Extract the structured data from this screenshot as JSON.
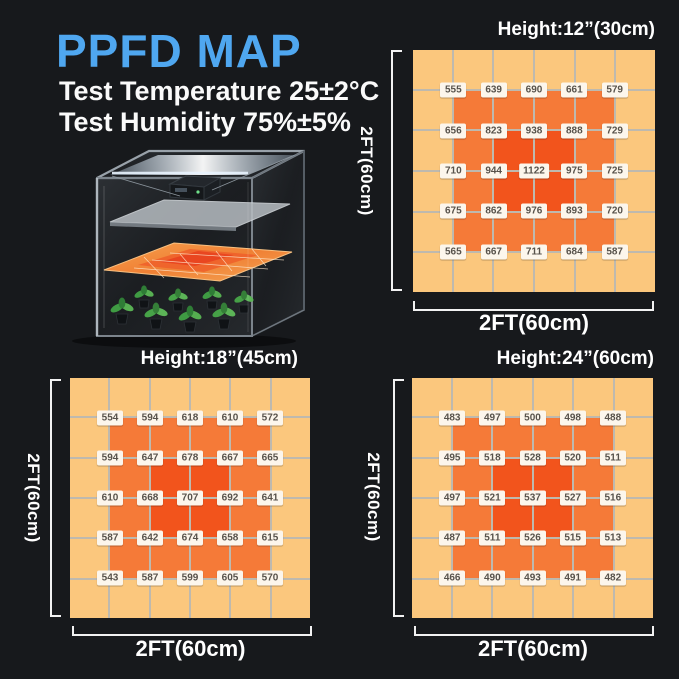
{
  "header": {
    "title": "PPFD MAP",
    "line1": "Test Temperature 25±2°C",
    "line2": "Test Humidity 75%±5%"
  },
  "colors": {
    "accent_blue": "#4FA7F0",
    "background": "#17191C",
    "cell_light": "#FBC77D",
    "cell_medium": "#F57A38",
    "cell_deep": "#F2541C",
    "chip_bg": "#FCF6EC",
    "chip_text": "#57524B",
    "bracket_white": "#F2F2F2"
  },
  "maps": [
    {
      "height_label": "Height:12”(30cm)",
      "x_label": "2FT(60cm)",
      "y_label": "2FT(60cm)",
      "values": [
        [
          555,
          639,
          690,
          661,
          579
        ],
        [
          656,
          823,
          938,
          888,
          729
        ],
        [
          710,
          944,
          1122,
          975,
          725
        ],
        [
          675,
          862,
          976,
          893,
          720
        ],
        [
          565,
          667,
          711,
          684,
          587
        ]
      ]
    },
    {
      "height_label": "Height:18”(45cm)",
      "x_label": "2FT(60cm)",
      "y_label": "2FT(60cm)",
      "values": [
        [
          554,
          594,
          618,
          610,
          572
        ],
        [
          594,
          647,
          678,
          667,
          665
        ],
        [
          610,
          668,
          707,
          692,
          641
        ],
        [
          587,
          642,
          674,
          658,
          615
        ],
        [
          543,
          587,
          599,
          605,
          570
        ]
      ]
    },
    {
      "height_label": "Height:24”(60cm)",
      "x_label": "2FT(60cm)",
      "y_label": "2FT(60cm)",
      "values": [
        [
          483,
          497,
          500,
          498,
          488
        ],
        [
          495,
          518,
          528,
          520,
          511
        ],
        [
          497,
          521,
          537,
          527,
          516
        ],
        [
          487,
          511,
          526,
          515,
          513
        ],
        [
          466,
          490,
          493,
          491,
          482
        ]
      ]
    }
  ],
  "chart_data": [
    {
      "type": "heatmap",
      "title": "Height:12”(30cm)",
      "xlabel": "2FT(60cm)",
      "ylabel": "2FT(60cm)",
      "grid": "on",
      "values": [
        [
          555,
          639,
          690,
          661,
          579
        ],
        [
          656,
          823,
          938,
          888,
          729
        ],
        [
          710,
          944,
          1122,
          975,
          725
        ],
        [
          675,
          862,
          976,
          893,
          720
        ],
        [
          565,
          667,
          711,
          684,
          587
        ]
      ],
      "color_scale": [
        "#FBC77D",
        "#F57A38",
        "#F2541C"
      ]
    },
    {
      "type": "heatmap",
      "title": "Height:18”(45cm)",
      "xlabel": "2FT(60cm)",
      "ylabel": "2FT(60cm)",
      "grid": "on",
      "values": [
        [
          554,
          594,
          618,
          610,
          572
        ],
        [
          594,
          647,
          678,
          667,
          665
        ],
        [
          610,
          668,
          707,
          692,
          641
        ],
        [
          587,
          642,
          674,
          658,
          615
        ],
        [
          543,
          587,
          599,
          605,
          570
        ]
      ],
      "color_scale": [
        "#FBC77D",
        "#F57A38",
        "#F2541C"
      ]
    },
    {
      "type": "heatmap",
      "title": "Height:24”(60cm)",
      "xlabel": "2FT(60cm)",
      "ylabel": "2FT(60cm)",
      "grid": "on",
      "values": [
        [
          483,
          497,
          500,
          498,
          488
        ],
        [
          495,
          518,
          528,
          520,
          511
        ],
        [
          497,
          521,
          537,
          527,
          516
        ],
        [
          487,
          511,
          526,
          515,
          513
        ],
        [
          466,
          490,
          493,
          491,
          482
        ]
      ],
      "color_scale": [
        "#FBC77D",
        "#F57A38",
        "#F2541C"
      ]
    }
  ]
}
